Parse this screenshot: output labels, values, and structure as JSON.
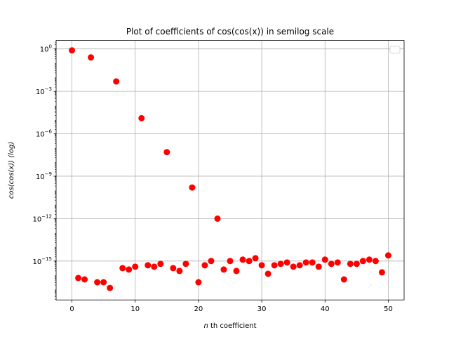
{
  "chart_data": {
    "type": "scatter",
    "title": "Plot of coefficients of cos(cos(x)) in semilog scale",
    "xlabel_italic": "n",
    "xlabel_rest": " th coefficient",
    "ylabel_main": "cos(cos(x))",
    "ylabel_suffix": "(log)",
    "x_scale": "linear",
    "y_scale": "log",
    "xlim": [
      -2.5,
      52.5
    ],
    "ylim_exp": [
      -17.75,
      0.6
    ],
    "x_ticks": [
      0,
      10,
      20,
      30,
      40,
      50
    ],
    "y_tick_exponents": [
      0,
      -3,
      -6,
      -9,
      -12,
      -15
    ],
    "grid": true,
    "legend": "top-right (empty)",
    "marker_color": "#ff0000",
    "series": [
      {
        "x": [
          0,
          1,
          2,
          3,
          4,
          5,
          6,
          7,
          8,
          9,
          10,
          11,
          12,
          13,
          14,
          15,
          16,
          17,
          18,
          19,
          20,
          21,
          22,
          23,
          24,
          25,
          26,
          27,
          28,
          29,
          30,
          31,
          32,
          33,
          34,
          35,
          36,
          37,
          38,
          39,
          40,
          41,
          42,
          43,
          44,
          45,
          46,
          47,
          48,
          49,
          50
        ],
        "y_exp": [
          -0.1,
          -16.2,
          -16.3,
          -0.6,
          -16.5,
          -16.5,
          -16.9,
          -2.3,
          -15.5,
          -15.6,
          -15.4,
          -4.9,
          -15.3,
          -15.4,
          -15.2,
          -7.3,
          -15.5,
          -15.7,
          -15.2,
          -9.8,
          -16.5,
          -15.3,
          -15.0,
          -12.0,
          -15.6,
          -15.0,
          -15.7,
          -14.9,
          -15.0,
          -14.8,
          -15.3,
          -15.9,
          -15.3,
          -15.2,
          -15.1,
          -15.4,
          -15.3,
          -15.1,
          -15.1,
          -15.4,
          -14.9,
          -15.2,
          -15.1,
          -16.3,
          -15.2,
          -15.2,
          -15.0,
          -14.9,
          -15.0,
          -15.8,
          -14.6
        ]
      }
    ]
  }
}
